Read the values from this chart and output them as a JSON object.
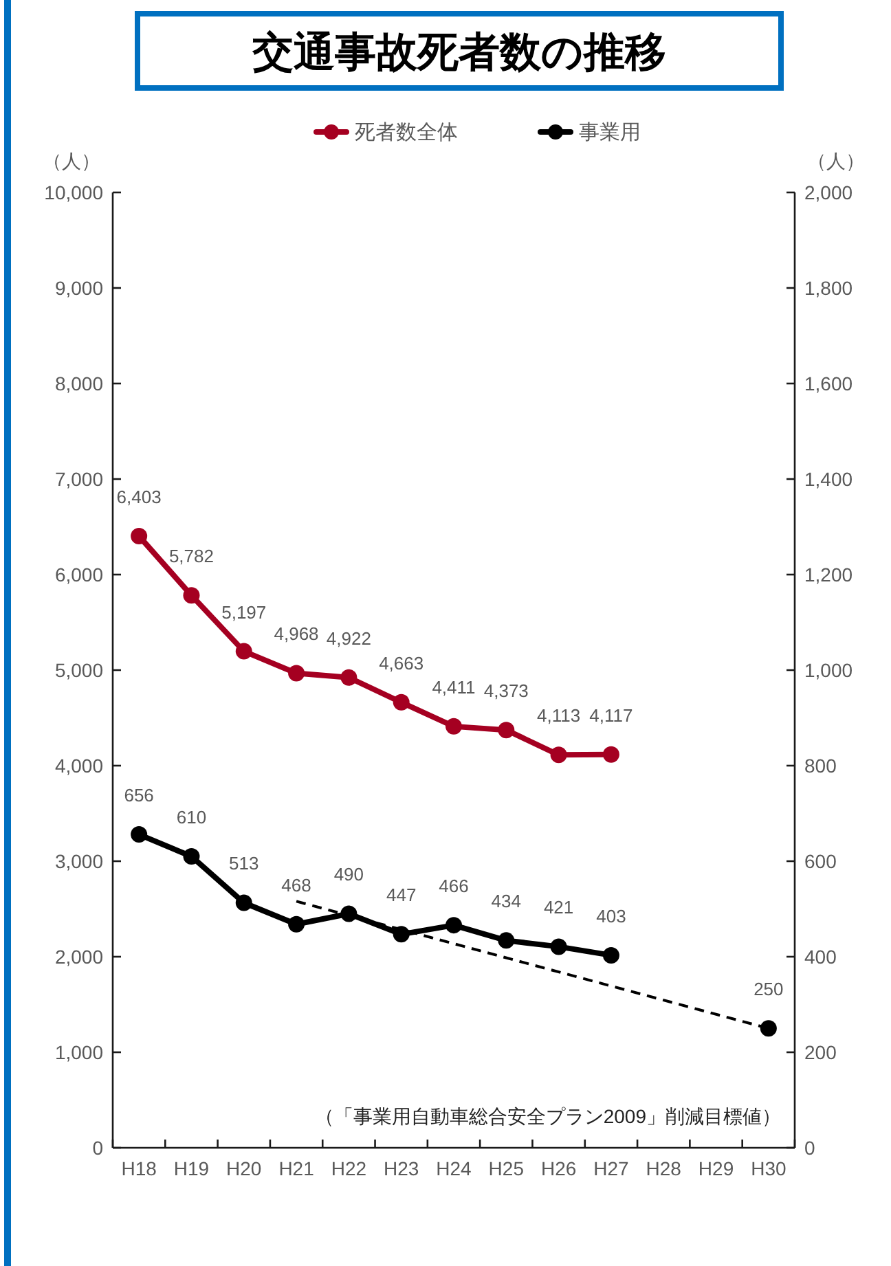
{
  "chart_data": {
    "type": "line",
    "title": "交通事故死者数の推移",
    "ylabel": "（人）",
    "y2label": "（人）",
    "categories": [
      "H18",
      "H19",
      "H20",
      "H21",
      "H22",
      "H23",
      "H24",
      "H25",
      "H26",
      "H27",
      "H28",
      "H29",
      "H30"
    ],
    "series": [
      {
        "name": "死者数全体",
        "color": "#a50021",
        "values": [
          6403,
          5782,
          5197,
          4968,
          4922,
          4663,
          4411,
          4373,
          4113,
          4117,
          null,
          null,
          null
        ],
        "value_labels": [
          "6,403",
          "5,782",
          "5,197",
          "4,968",
          "4,922",
          "4,663",
          "4,411",
          "4,373",
          "4,113",
          "4,117",
          null,
          null,
          null
        ]
      },
      {
        "name": "事業用",
        "color": "#000000",
        "axis": "y2",
        "values": [
          656,
          610,
          513,
          468,
          490,
          447,
          466,
          434,
          421,
          403,
          null,
          null,
          null
        ],
        "value_labels": [
          "656",
          "610",
          "513",
          "468",
          "490",
          "447",
          "466",
          "434",
          "421",
          "403",
          null,
          null,
          null
        ]
      },
      {
        "type": "line",
        "color": "#000000",
        "axis": "y2",
        "x": [
          "H21",
          "H30"
        ],
        "values": [
          516,
          250
        ],
        "line_style": "dashed",
        "marker": "none"
      },
      {
        "type": "scatter",
        "color": "#000000",
        "axis": "y2",
        "x": [
          "H30"
        ],
        "values": [
          250
        ],
        "value_labels": [
          "250"
        ]
      }
    ],
    "ylim": [
      0,
      10000
    ],
    "yticks": [
      0,
      {
        "value": 1000,
        "label": "1,000"
      },
      {
        "value": 2000,
        "label": "2,000"
      },
      {
        "value": 3000,
        "label": "3,000"
      },
      {
        "value": 4000,
        "label": "4,000"
      },
      {
        "value": 5000,
        "label": "5,000"
      },
      {
        "value": 6000,
        "label": "6,000"
      },
      {
        "value": 7000,
        "label": "7,000"
      },
      {
        "value": 8000,
        "label": "8,000"
      },
      {
        "value": 9000,
        "label": "9,000"
      },
      {
        "value": 10000,
        "label": "10,000"
      }
    ],
    "y2lim": [
      0,
      2000
    ],
    "y2ticks": [
      0,
      200,
      400,
      600,
      800,
      {
        "value": 1000,
        "label": "1,000"
      },
      {
        "value": 1200,
        "label": "1,200"
      },
      {
        "value": 1400,
        "label": "1,400"
      },
      {
        "value": 1600,
        "label": "1,600"
      },
      {
        "value": 1800,
        "label": "1,800"
      },
      {
        "value": 2000,
        "label": "2,000"
      }
    ],
    "marker": "circle",
    "line_style": "solid",
    "legend": "top",
    "annotations": [
      "（「事業用自動車総合安全プラン2009」削減目標値）"
    ]
  }
}
